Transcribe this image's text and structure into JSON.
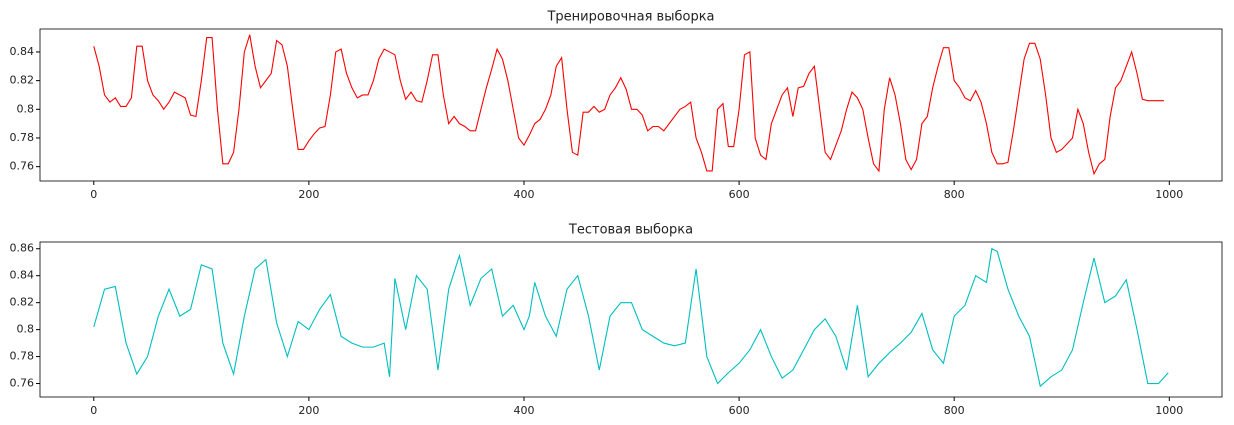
{
  "chart_data": [
    {
      "type": "line",
      "title": "Тренировочная выборка",
      "color": "#ff0000",
      "x": [
        0,
        5,
        10,
        15,
        20,
        25,
        30,
        35,
        40,
        45,
        50,
        55,
        60,
        65,
        70,
        75,
        80,
        85,
        90,
        95,
        100,
        105,
        110,
        115,
        120,
        125,
        130,
        135,
        140,
        145,
        150,
        155,
        160,
        165,
        170,
        175,
        180,
        185,
        190,
        195,
        200,
        205,
        210,
        215,
        220,
        225,
        230,
        235,
        240,
        245,
        250,
        255,
        260,
        265,
        270,
        275,
        280,
        285,
        290,
        295,
        300,
        305,
        310,
        315,
        320,
        325,
        330,
        335,
        340,
        345,
        350,
        355,
        360,
        365,
        370,
        375,
        380,
        385,
        390,
        395,
        400,
        405,
        410,
        415,
        420,
        425,
        430,
        435,
        440,
        445,
        450,
        455,
        460,
        465,
        470,
        475,
        480,
        485,
        490,
        495,
        500,
        505,
        510,
        515,
        520,
        525,
        530,
        535,
        540,
        545,
        550,
        555,
        560,
        565,
        570,
        575,
        580,
        585,
        590,
        595,
        600,
        605,
        610,
        615,
        620,
        625,
        630,
        635,
        640,
        645,
        650,
        655,
        660,
        665,
        670,
        675,
        680,
        685,
        690,
        695,
        700,
        705,
        710,
        715,
        720,
        725,
        730,
        735,
        740,
        745,
        750,
        755,
        760,
        765,
        770,
        775,
        780,
        785,
        790,
        795,
        800,
        805,
        810,
        815,
        820,
        825,
        830,
        835,
        840,
        845,
        850,
        855,
        860,
        865,
        870,
        875,
        880,
        885,
        890,
        895,
        900,
        905,
        910,
        915,
        920,
        925,
        930,
        935,
        940,
        945,
        950,
        955,
        960,
        965,
        970,
        975,
        980,
        985,
        990,
        995
      ],
      "values": [
        0.844,
        0.83,
        0.81,
        0.805,
        0.808,
        0.802,
        0.802,
        0.808,
        0.844,
        0.844,
        0.82,
        0.81,
        0.806,
        0.8,
        0.805,
        0.812,
        0.81,
        0.808,
        0.796,
        0.795,
        0.82,
        0.85,
        0.85,
        0.8,
        0.762,
        0.762,
        0.77,
        0.8,
        0.84,
        0.852,
        0.83,
        0.815,
        0.82,
        0.825,
        0.848,
        0.845,
        0.83,
        0.8,
        0.772,
        0.772,
        0.778,
        0.783,
        0.787,
        0.788,
        0.81,
        0.84,
        0.842,
        0.825,
        0.815,
        0.808,
        0.81,
        0.81,
        0.82,
        0.835,
        0.842,
        0.84,
        0.838,
        0.82,
        0.807,
        0.812,
        0.806,
        0.805,
        0.82,
        0.838,
        0.838,
        0.81,
        0.79,
        0.795,
        0.79,
        0.788,
        0.785,
        0.785,
        0.8,
        0.815,
        0.828,
        0.842,
        0.835,
        0.82,
        0.8,
        0.78,
        0.775,
        0.782,
        0.79,
        0.793,
        0.8,
        0.81,
        0.83,
        0.836,
        0.8,
        0.77,
        0.768,
        0.798,
        0.798,
        0.802,
        0.798,
        0.8,
        0.81,
        0.815,
        0.822,
        0.814,
        0.8,
        0.8,
        0.796,
        0.785,
        0.788,
        0.788,
        0.785,
        0.79,
        0.795,
        0.8,
        0.802,
        0.805,
        0.78,
        0.77,
        0.757,
        0.757,
        0.8,
        0.804,
        0.774,
        0.774,
        0.8,
        0.838,
        0.84,
        0.78,
        0.768,
        0.765,
        0.79,
        0.8,
        0.81,
        0.815,
        0.795,
        0.815,
        0.816,
        0.825,
        0.83,
        0.8,
        0.77,
        0.765,
        0.775,
        0.785,
        0.8,
        0.812,
        0.808,
        0.8,
        0.78,
        0.762,
        0.757,
        0.8,
        0.822,
        0.81,
        0.79,
        0.765,
        0.758,
        0.765,
        0.79,
        0.795,
        0.815,
        0.83,
        0.843,
        0.843,
        0.82,
        0.815,
        0.808,
        0.806,
        0.813,
        0.805,
        0.79,
        0.77,
        0.762,
        0.762,
        0.763,
        0.785,
        0.81,
        0.835,
        0.846,
        0.846,
        0.835,
        0.81,
        0.78,
        0.77,
        0.772,
        0.776,
        0.78,
        0.8,
        0.79,
        0.77,
        0.755,
        0.762,
        0.765,
        0.795,
        0.815,
        0.82,
        0.83,
        0.84,
        0.825,
        0.807,
        0.806,
        0.806,
        0.806,
        0.806
      ],
      "xlim": [
        -50,
        1049
      ],
      "xticks": [
        0,
        200,
        400,
        600,
        800,
        1000
      ],
      "ylim": [
        0.75,
        0.856
      ],
      "yticks": [
        0.76,
        0.78,
        0.8,
        0.82,
        0.84
      ],
      "grid": false
    },
    {
      "type": "line",
      "title": "Тестовая выборка",
      "color": "#00bfbf",
      "x": [
        0,
        10,
        20,
        30,
        40,
        50,
        60,
        70,
        80,
        90,
        100,
        110,
        120,
        130,
        140,
        150,
        160,
        170,
        180,
        190,
        200,
        210,
        220,
        230,
        240,
        250,
        260,
        270,
        275,
        280,
        290,
        300,
        310,
        320,
        330,
        340,
        350,
        360,
        370,
        380,
        390,
        400,
        405,
        410,
        420,
        430,
        440,
        450,
        460,
        470,
        480,
        490,
        500,
        510,
        520,
        530,
        540,
        550,
        560,
        570,
        580,
        590,
        600,
        610,
        620,
        630,
        640,
        650,
        660,
        670,
        680,
        690,
        700,
        710,
        720,
        730,
        740,
        750,
        760,
        770,
        780,
        790,
        800,
        810,
        820,
        830,
        835,
        840,
        850,
        860,
        870,
        880,
        890,
        900,
        910,
        920,
        930,
        940,
        950,
        960,
        970,
        980,
        990,
        999
      ],
      "values": [
        0.802,
        0.83,
        0.832,
        0.79,
        0.767,
        0.78,
        0.81,
        0.83,
        0.81,
        0.815,
        0.848,
        0.845,
        0.79,
        0.767,
        0.81,
        0.845,
        0.852,
        0.805,
        0.78,
        0.806,
        0.8,
        0.815,
        0.826,
        0.795,
        0.79,
        0.787,
        0.787,
        0.79,
        0.765,
        0.838,
        0.8,
        0.84,
        0.83,
        0.77,
        0.83,
        0.855,
        0.818,
        0.838,
        0.845,
        0.81,
        0.818,
        0.8,
        0.81,
        0.835,
        0.81,
        0.795,
        0.83,
        0.84,
        0.81,
        0.77,
        0.81,
        0.82,
        0.82,
        0.8,
        0.795,
        0.79,
        0.788,
        0.79,
        0.845,
        0.78,
        0.76,
        0.768,
        0.775,
        0.785,
        0.8,
        0.78,
        0.764,
        0.77,
        0.785,
        0.8,
        0.808,
        0.795,
        0.77,
        0.818,
        0.765,
        0.775,
        0.783,
        0.79,
        0.798,
        0.812,
        0.785,
        0.775,
        0.81,
        0.818,
        0.84,
        0.835,
        0.86,
        0.858,
        0.83,
        0.81,
        0.795,
        0.758,
        0.765,
        0.77,
        0.785,
        0.82,
        0.853,
        0.82,
        0.825,
        0.837,
        0.8,
        0.76,
        0.76,
        0.768
      ],
      "xlim": [
        -50,
        1049
      ],
      "xticks": [
        0,
        200,
        400,
        600,
        800,
        1000
      ],
      "ylim": [
        0.75,
        0.865
      ],
      "yticks": [
        0.76,
        0.78,
        0.8,
        0.82,
        0.84,
        0.86
      ],
      "grid": false
    }
  ]
}
